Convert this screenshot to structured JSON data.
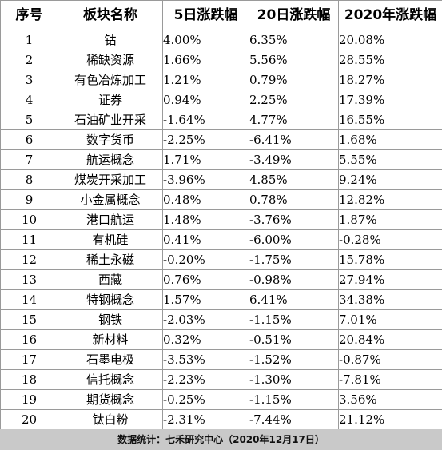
{
  "table": {
    "headers": [
      "序号",
      "板块名称",
      "5日涨跌幅",
      "20日涨跌幅",
      "2020年涨跌幅"
    ],
    "rows": [
      [
        "1",
        "钴",
        "4.00%",
        "6.35%",
        "20.08%"
      ],
      [
        "2",
        "稀缺资源",
        "1.66%",
        "5.56%",
        "28.55%"
      ],
      [
        "3",
        "有色冶炼加工",
        "1.21%",
        "0.79%",
        "18.27%"
      ],
      [
        "4",
        "证券",
        "0.94%",
        "2.25%",
        "17.39%"
      ],
      [
        "5",
        "石油矿业开采",
        "-1.64%",
        "4.77%",
        "16.55%"
      ],
      [
        "6",
        "数字货币",
        "-2.25%",
        "-6.41%",
        "1.68%"
      ],
      [
        "7",
        "航运概念",
        "1.71%",
        "-3.49%",
        "5.55%"
      ],
      [
        "8",
        "煤炭开采加工",
        "-3.96%",
        "4.85%",
        "9.24%"
      ],
      [
        "9",
        "小金属概念",
        "0.48%",
        "0.78%",
        "12.82%"
      ],
      [
        "10",
        "港口航运",
        "1.48%",
        "-3.76%",
        "1.87%"
      ],
      [
        "11",
        "有机硅",
        "0.41%",
        "-6.00%",
        "-0.28%"
      ],
      [
        "12",
        "稀土永磁",
        "-0.20%",
        "-1.75%",
        "15.78%"
      ],
      [
        "13",
        "西藏",
        "0.76%",
        "-0.98%",
        "27.94%"
      ],
      [
        "14",
        "特钢概念",
        "1.57%",
        "6.41%",
        "34.38%"
      ],
      [
        "15",
        "钢铁",
        "-2.03%",
        "-1.15%",
        "7.01%"
      ],
      [
        "16",
        "新材料",
        "0.32%",
        "-0.51%",
        "20.84%"
      ],
      [
        "17",
        "石墨电极",
        "-3.53%",
        "-1.52%",
        "-0.87%"
      ],
      [
        "18",
        "信托概念",
        "-2.23%",
        "-1.30%",
        "-7.81%"
      ],
      [
        "19",
        "期货概念",
        "-0.25%",
        "-1.15%",
        "3.56%"
      ],
      [
        "20",
        "钛白粉",
        "-2.31%",
        "-7.44%",
        "21.12%"
      ]
    ]
  },
  "footer": {
    "text": "数据统计：七禾研究中心（2020年12月17日）"
  },
  "colors": {
    "grid": "#9a9a9a",
    "footer_bg": "#c9c9c9",
    "text": "#000000"
  }
}
